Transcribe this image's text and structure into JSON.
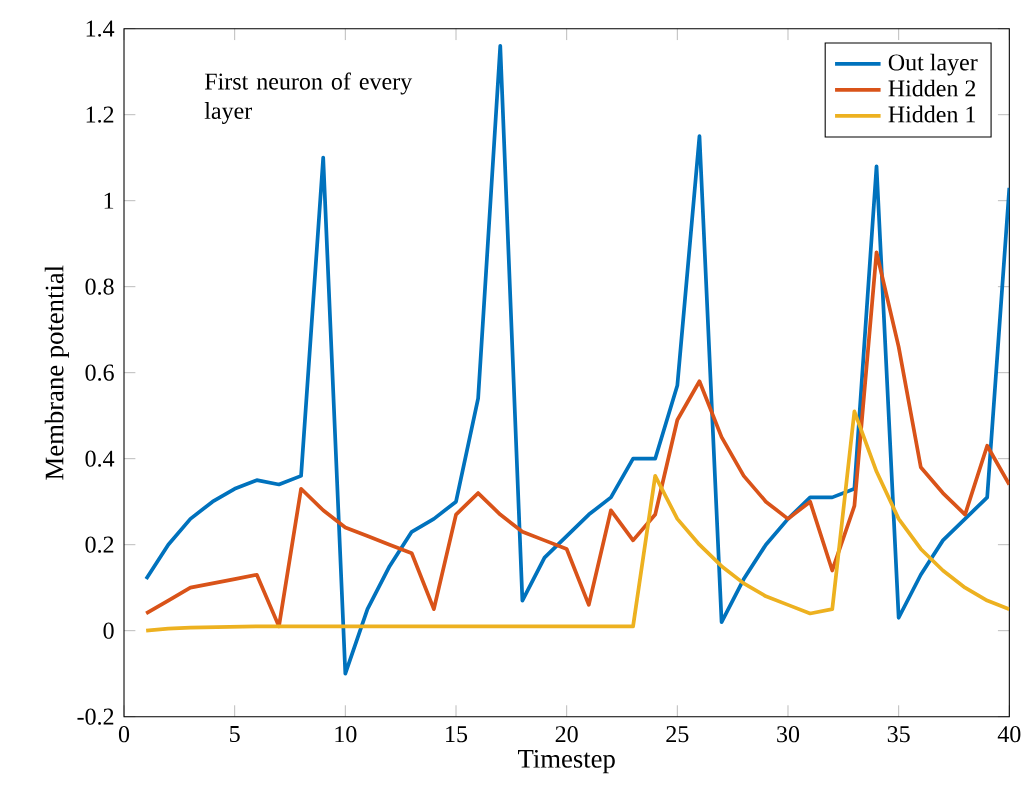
{
  "chart_data": {
    "type": "line",
    "xlabel": "Timestep",
    "ylabel": "Membrane potential",
    "annotations": [
      "First neuron of every layer"
    ],
    "x": [
      1,
      2,
      3,
      4,
      5,
      6,
      7,
      8,
      9,
      10,
      11,
      12,
      13,
      14,
      15,
      16,
      17,
      18,
      19,
      20,
      21,
      22,
      23,
      24,
      25,
      26,
      27,
      28,
      29,
      30,
      31,
      32,
      33,
      34,
      35,
      36,
      37,
      38,
      39,
      40
    ],
    "series": [
      {
        "name": "Out layer",
        "color": "#0072bd",
        "values": [
          0.12,
          0.2,
          0.26,
          0.3,
          0.33,
          0.35,
          0.34,
          0.36,
          1.1,
          -0.1,
          0.05,
          0.15,
          0.23,
          0.26,
          0.3,
          0.54,
          1.36,
          0.07,
          0.17,
          0.22,
          0.27,
          0.31,
          0.4,
          0.4,
          0.57,
          1.15,
          0.02,
          0.12,
          0.2,
          0.26,
          0.31,
          0.31,
          0.33,
          1.08,
          0.03,
          0.13,
          0.21,
          0.26,
          0.31,
          1.03
        ]
      },
      {
        "name": "Hidden 2",
        "color": "#d95319",
        "values": [
          0.04,
          0.07,
          0.1,
          0.11,
          0.12,
          0.13,
          0.01,
          0.33,
          0.28,
          0.24,
          0.22,
          0.2,
          0.18,
          0.05,
          0.27,
          0.32,
          0.27,
          0.23,
          0.21,
          0.19,
          0.06,
          0.28,
          0.21,
          0.27,
          0.49,
          0.58,
          0.45,
          0.36,
          0.3,
          0.26,
          0.3,
          0.14,
          0.29,
          0.88,
          0.66,
          0.38,
          0.32,
          0.27,
          0.43,
          0.34
        ]
      },
      {
        "name": "Hidden 1",
        "color": "#edb120",
        "values": [
          0.0,
          0.005,
          0.007,
          0.008,
          0.009,
          0.01,
          0.01,
          0.01,
          0.01,
          0.01,
          0.01,
          0.01,
          0.01,
          0.01,
          0.01,
          0.01,
          0.01,
          0.01,
          0.01,
          0.01,
          0.01,
          0.01,
          0.01,
          0.36,
          0.26,
          0.2,
          0.15,
          0.11,
          0.08,
          0.06,
          0.04,
          0.05,
          0.51,
          0.37,
          0.26,
          0.19,
          0.14,
          0.1,
          0.07,
          0.05
        ]
      }
    ],
    "xlim": [
      0,
      40
    ],
    "xticks": [
      0,
      5,
      10,
      15,
      20,
      25,
      30,
      35,
      40
    ],
    "ylim": [
      -0.2,
      1.4
    ],
    "yticks": [
      -0.2,
      0,
      0.2,
      0.4,
      0.6,
      0.8,
      1,
      1.2,
      1.4
    ],
    "grid": false,
    "legend": "top right",
    "marker": "none",
    "line_style": "solid"
  }
}
